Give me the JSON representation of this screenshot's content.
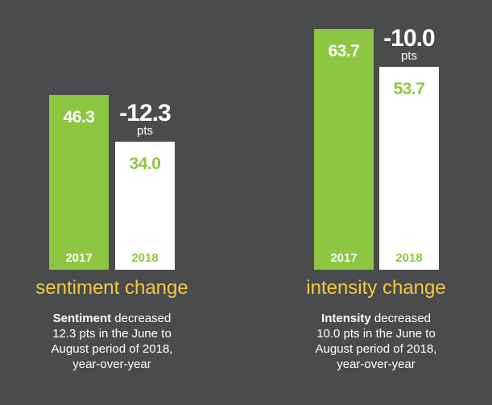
{
  "colors": {
    "background": "#4a4b4d",
    "green": "#8dc641",
    "white": "#ffffff",
    "yellow": "#f0c93f"
  },
  "chart_data": [
    {
      "type": "bar",
      "title": "sentiment change",
      "categories": [
        "2017",
        "2018"
      ],
      "values": [
        46.3,
        34.0
      ],
      "value_labels": [
        "46.3",
        "34.0"
      ],
      "change_label": "-12.3",
      "change_unit": "pts",
      "description_bold": "Sentiment",
      "description_rest": [
        " decreased",
        "12.3 pts in the June to",
        "August period of 2018,",
        "year-over-year"
      ],
      "ylim": [
        0,
        70
      ]
    },
    {
      "type": "bar",
      "title": "intensity change",
      "categories": [
        "2017",
        "2018"
      ],
      "values": [
        63.7,
        53.7
      ],
      "value_labels": [
        "63.7",
        "53.7"
      ],
      "change_label": "-10.0",
      "change_unit": "pts",
      "description_bold": "Intensity",
      "description_rest": [
        " decreased",
        "10.0 pts in the June to",
        "August period of 2018,",
        "year-over-year"
      ],
      "ylim": [
        0,
        70
      ]
    }
  ]
}
